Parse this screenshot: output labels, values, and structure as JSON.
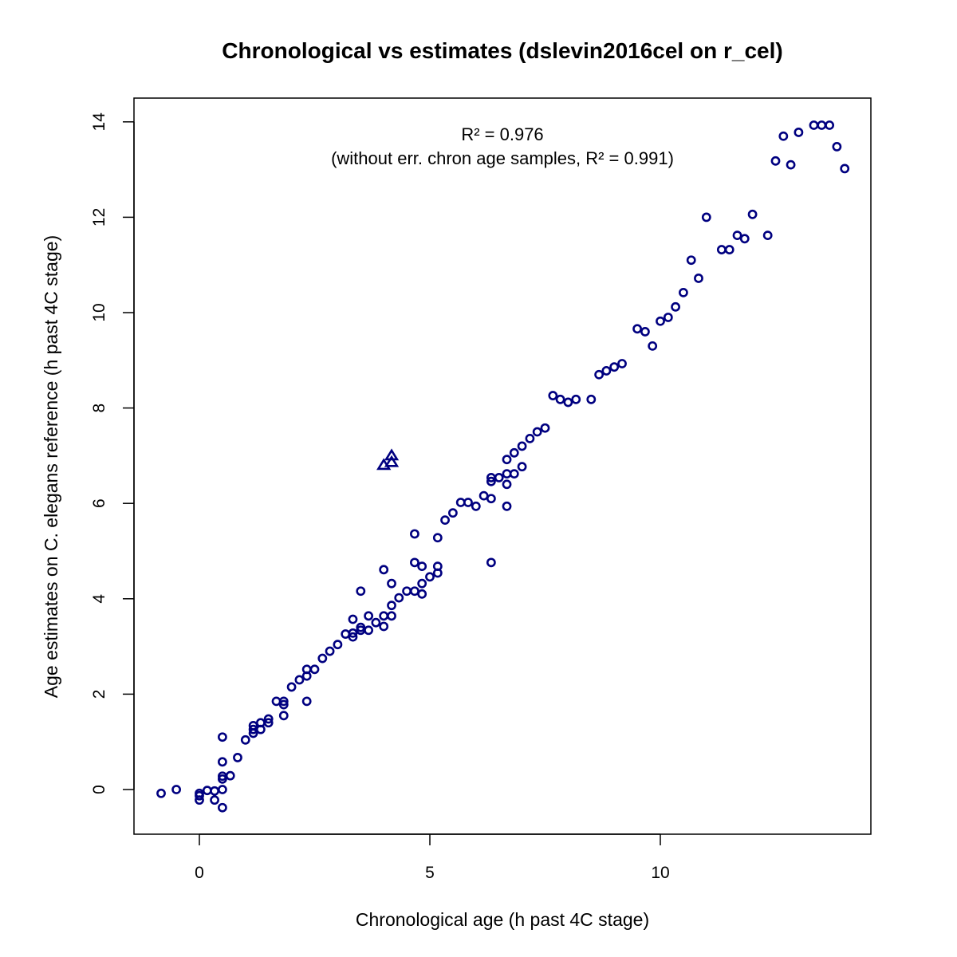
{
  "chart_data": {
    "type": "scatter",
    "title": "Chronological vs estimates (dslevin2016cel on r_cel)",
    "xlabel": "Chronological age (h past 4C stage)",
    "ylabel": "Age estimates on C. elegans reference (h past 4C stage)",
    "xlim": [
      -1.4,
      14.6
    ],
    "ylim": [
      -0.95,
      14.5
    ],
    "x_ticks": [
      0,
      5,
      10
    ],
    "y_ticks": [
      0,
      2,
      4,
      6,
      8,
      10,
      12,
      14
    ],
    "x_tick_labels": [
      "0",
      "5",
      "10"
    ],
    "y_tick_labels": [
      "0",
      "2",
      "4",
      "6",
      "8",
      "10",
      "12",
      "14"
    ],
    "grid": false,
    "color": "#000080",
    "annotations": [
      "R² = 0.976",
      "(without err. chron age samples, R² = 0.991)"
    ],
    "series": [
      {
        "marker": "circle",
        "points": [
          [
            -0.83,
            -0.08
          ],
          [
            -0.5,
            0.0
          ],
          [
            0.0,
            -0.08
          ],
          [
            0.0,
            -0.13
          ],
          [
            0.0,
            -0.22
          ],
          [
            0.17,
            -0.02
          ],
          [
            0.33,
            -0.03
          ],
          [
            0.33,
            -0.22
          ],
          [
            0.5,
            -0.38
          ],
          [
            0.5,
            0.0
          ],
          [
            0.5,
            0.22
          ],
          [
            0.5,
            0.28
          ],
          [
            0.5,
            0.58
          ],
          [
            0.5,
            1.1
          ],
          [
            0.67,
            0.29
          ],
          [
            0.83,
            0.67
          ],
          [
            1.0,
            1.04
          ],
          [
            1.17,
            1.18
          ],
          [
            1.17,
            1.26
          ],
          [
            1.17,
            1.34
          ],
          [
            1.33,
            1.26
          ],
          [
            1.33,
            1.4
          ],
          [
            1.5,
            1.4
          ],
          [
            1.5,
            1.48
          ],
          [
            1.67,
            1.85
          ],
          [
            1.83,
            1.55
          ],
          [
            1.83,
            1.78
          ],
          [
            1.83,
            1.85
          ],
          [
            2.0,
            2.15
          ],
          [
            2.17,
            2.3
          ],
          [
            2.33,
            2.38
          ],
          [
            2.33,
            2.52
          ],
          [
            2.33,
            1.85
          ],
          [
            2.5,
            2.52
          ],
          [
            2.67,
            2.75
          ],
          [
            2.83,
            2.9
          ],
          [
            3.0,
            3.04
          ],
          [
            3.17,
            3.26
          ],
          [
            3.33,
            3.2
          ],
          [
            3.33,
            3.28
          ],
          [
            3.33,
            3.57
          ],
          [
            3.5,
            3.34
          ],
          [
            3.5,
            3.4
          ],
          [
            3.5,
            4.16
          ],
          [
            3.67,
            3.34
          ],
          [
            3.67,
            3.64
          ],
          [
            3.83,
            3.5
          ],
          [
            4.0,
            3.42
          ],
          [
            4.0,
            3.64
          ],
          [
            4.0,
            4.61
          ],
          [
            4.17,
            3.64
          ],
          [
            4.17,
            3.86
          ],
          [
            4.17,
            4.32
          ],
          [
            4.33,
            4.02
          ],
          [
            4.5,
            4.16
          ],
          [
            4.67,
            4.16
          ],
          [
            4.67,
            4.76
          ],
          [
            4.67,
            5.36
          ],
          [
            4.83,
            4.1
          ],
          [
            4.83,
            4.32
          ],
          [
            4.83,
            4.68
          ],
          [
            5.0,
            4.46
          ],
          [
            5.17,
            4.54
          ],
          [
            5.17,
            4.68
          ],
          [
            5.17,
            5.28
          ],
          [
            5.33,
            5.65
          ],
          [
            5.5,
            5.8
          ],
          [
            5.67,
            6.02
          ],
          [
            5.83,
            6.02
          ],
          [
            6.0,
            5.94
          ],
          [
            6.17,
            6.16
          ],
          [
            6.33,
            4.76
          ],
          [
            6.33,
            6.1
          ],
          [
            6.33,
            6.46
          ],
          [
            6.33,
            6.54
          ],
          [
            6.5,
            6.54
          ],
          [
            6.67,
            5.94
          ],
          [
            6.67,
            6.4
          ],
          [
            6.67,
            6.62
          ],
          [
            6.67,
            6.92
          ],
          [
            6.83,
            6.62
          ],
          [
            6.83,
            7.06
          ],
          [
            7.0,
            6.77
          ],
          [
            7.0,
            7.2
          ],
          [
            7.17,
            7.36
          ],
          [
            7.33,
            7.5
          ],
          [
            7.5,
            7.58
          ],
          [
            7.67,
            8.26
          ],
          [
            7.83,
            8.18
          ],
          [
            8.0,
            8.12
          ],
          [
            8.17,
            8.18
          ],
          [
            8.5,
            8.18
          ],
          [
            8.67,
            8.7
          ],
          [
            8.83,
            8.78
          ],
          [
            9.0,
            8.86
          ],
          [
            9.17,
            8.93
          ],
          [
            9.5,
            9.66
          ],
          [
            9.67,
            9.6
          ],
          [
            9.83,
            9.3
          ],
          [
            10.0,
            9.82
          ],
          [
            10.17,
            9.9
          ],
          [
            10.33,
            10.12
          ],
          [
            10.5,
            10.42
          ],
          [
            10.67,
            11.1
          ],
          [
            10.83,
            10.72
          ],
          [
            11.0,
            12.0
          ],
          [
            11.33,
            11.32
          ],
          [
            11.5,
            11.32
          ],
          [
            11.67,
            11.62
          ],
          [
            11.83,
            11.55
          ],
          [
            12.0,
            12.06
          ],
          [
            12.33,
            11.62
          ],
          [
            12.5,
            13.18
          ],
          [
            12.67,
            13.7
          ],
          [
            12.83,
            13.1
          ],
          [
            13.0,
            13.78
          ],
          [
            13.33,
            13.93
          ],
          [
            13.5,
            13.93
          ],
          [
            13.67,
            13.93
          ],
          [
            13.83,
            13.48
          ],
          [
            14.0,
            13.02
          ]
        ]
      },
      {
        "marker": "triangle",
        "points": [
          [
            4.0,
            6.8
          ],
          [
            4.17,
            6.86
          ],
          [
            4.17,
            7.0
          ]
        ]
      }
    ]
  }
}
